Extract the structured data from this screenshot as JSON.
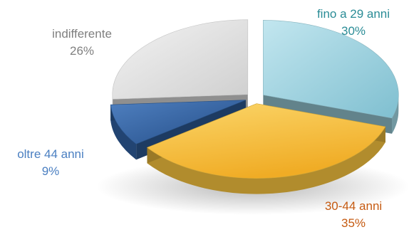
{
  "chart_data": {
    "type": "pie",
    "style": "3d-exploded",
    "title": "",
    "categories": [
      "fino a 29 anni",
      "30-44 anni",
      "oltre 44 anni",
      "indifferente"
    ],
    "values": [
      30,
      35,
      9,
      26
    ],
    "labels": [
      "30%",
      "35%",
      "9%",
      "26%"
    ],
    "colors": [
      "#9ed3e0",
      "#f6c33f",
      "#2f5f9e",
      "#e6e6e6"
    ],
    "label_colors": [
      "#2a8c96",
      "#c55a11",
      "#4a7fc1",
      "#7f7f7f"
    ],
    "legend": "none"
  }
}
